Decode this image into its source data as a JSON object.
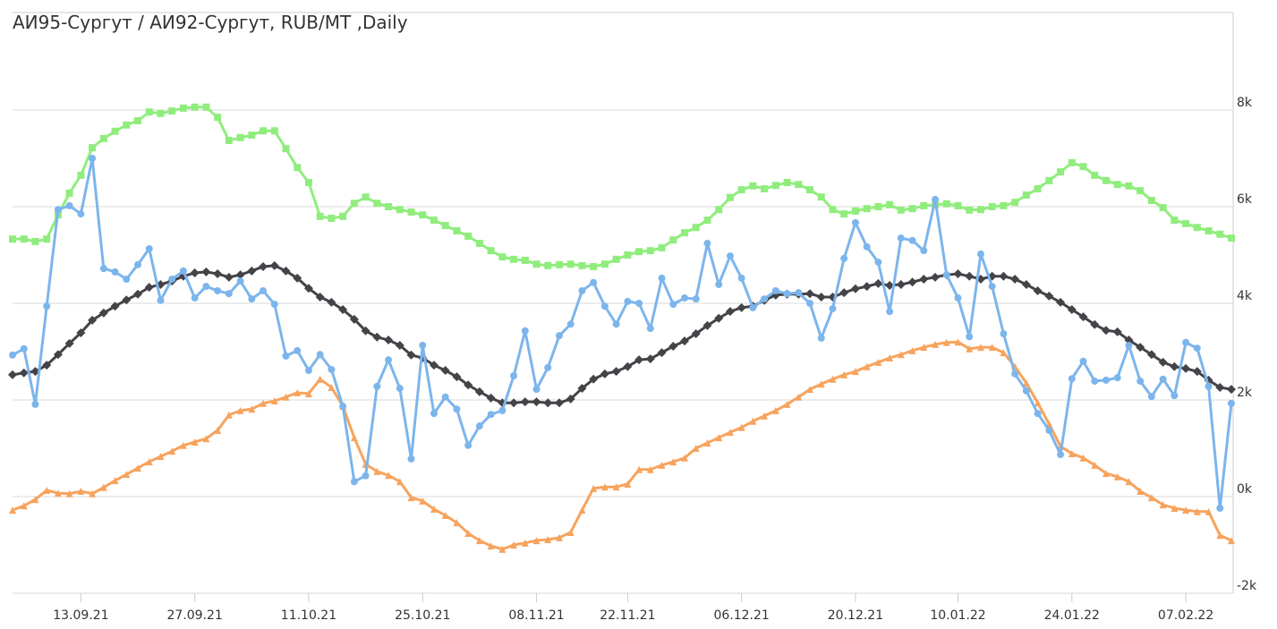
{
  "chart_data": {
    "type": "line",
    "title": "АИ95-Сургут / АИ92-Сургут, RUB/MT ,Daily",
    "categories": [
      null,
      null,
      null,
      null,
      null,
      null,
      "13.09.21",
      null,
      null,
      null,
      null,
      null,
      null,
      null,
      null,
      null,
      "27.09.21",
      null,
      null,
      null,
      null,
      null,
      null,
      null,
      null,
      null,
      "11.10.21",
      null,
      null,
      null,
      null,
      null,
      null,
      null,
      null,
      null,
      "25.10.21",
      null,
      null,
      null,
      null,
      null,
      null,
      null,
      null,
      null,
      "08.11.21",
      null,
      null,
      null,
      null,
      null,
      null,
      null,
      "22.11.21",
      null,
      null,
      null,
      null,
      null,
      null,
      null,
      null,
      null,
      "06.12.21",
      null,
      null,
      null,
      null,
      null,
      null,
      null,
      null,
      null,
      "20.12.21",
      null,
      null,
      null,
      null,
      null,
      null,
      null,
      null,
      "10.01.22",
      null,
      null,
      null,
      null,
      null,
      null,
      null,
      null,
      null,
      "24.01.22",
      null,
      null,
      null,
      null,
      null,
      null,
      null,
      null,
      null,
      "07.02.22",
      null,
      null,
      null,
      null
    ],
    "series": [
      {
        "color": "#90ed7d",
        "marker": "square",
        "values": [
          5330,
          5330,
          5280,
          5330,
          5830,
          6280,
          6650,
          7220,
          7410,
          7560,
          7690,
          7780,
          7960,
          7930,
          7980,
          8040,
          8060,
          8060,
          7850,
          7370,
          7430,
          7480,
          7570,
          7570,
          7200,
          6810,
          6500,
          5800,
          5760,
          5800,
          6070,
          6200,
          6070,
          6000,
          5940,
          5890,
          5830,
          5720,
          5610,
          5500,
          5390,
          5240,
          5090,
          4960,
          4910,
          4890,
          4810,
          4780,
          4800,
          4810,
          4780,
          4760,
          4810,
          4910,
          5000,
          5070,
          5090,
          5150,
          5310,
          5460,
          5570,
          5720,
          5940,
          6190,
          6350,
          6430,
          6370,
          6440,
          6500,
          6460,
          6350,
          6200,
          5940,
          5850,
          5910,
          5960,
          6000,
          6040,
          5930,
          5960,
          6020,
          6040,
          6060,
          6020,
          5930,
          5940,
          6000,
          6020,
          6090,
          6240,
          6370,
          6540,
          6720,
          6910,
          6830,
          6650,
          6540,
          6460,
          6430,
          6330,
          6130,
          5980,
          5720,
          5650,
          5570,
          5500,
          5430,
          5350
        ]
      },
      {
        "color": "#434348",
        "marker": "diamond",
        "values": [
          2520,
          2560,
          2590,
          2720,
          2940,
          3170,
          3390,
          3650,
          3800,
          3940,
          4070,
          4190,
          4330,
          4390,
          4460,
          4560,
          4630,
          4650,
          4610,
          4540,
          4590,
          4670,
          4760,
          4780,
          4670,
          4520,
          4310,
          4130,
          4020,
          3870,
          3670,
          3430,
          3300,
          3240,
          3130,
          2930,
          2870,
          2720,
          2610,
          2480,
          2310,
          2170,
          2040,
          1940,
          1940,
          1960,
          1960,
          1940,
          1940,
          2020,
          2240,
          2430,
          2540,
          2590,
          2690,
          2830,
          2850,
          2980,
          3110,
          3220,
          3370,
          3540,
          3690,
          3830,
          3910,
          3940,
          4060,
          4170,
          4190,
          4190,
          4200,
          4130,
          4130,
          4220,
          4300,
          4350,
          4410,
          4370,
          4390,
          4440,
          4500,
          4540,
          4590,
          4610,
          4560,
          4500,
          4560,
          4560,
          4500,
          4390,
          4260,
          4150,
          4020,
          3870,
          3720,
          3560,
          3440,
          3410,
          3240,
          3090,
          2940,
          2780,
          2690,
          2650,
          2590,
          2410,
          2260,
          2220
        ]
      },
      {
        "color": "#f7a35c",
        "marker": "triangle",
        "values": [
          -280,
          -190,
          -60,
          130,
          70,
          60,
          110,
          60,
          190,
          330,
          460,
          590,
          720,
          830,
          940,
          1060,
          1130,
          1200,
          1370,
          1690,
          1780,
          1810,
          1930,
          1980,
          2060,
          2150,
          2130,
          2430,
          2260,
          1870,
          1220,
          670,
          520,
          440,
          310,
          -20,
          -90,
          -260,
          -390,
          -540,
          -760,
          -910,
          -1020,
          -1090,
          -1000,
          -960,
          -910,
          -890,
          -850,
          -740,
          -280,
          170,
          200,
          200,
          260,
          560,
          560,
          650,
          720,
          800,
          1000,
          1110,
          1220,
          1330,
          1430,
          1560,
          1670,
          1780,
          1910,
          2060,
          2220,
          2330,
          2430,
          2520,
          2590,
          2690,
          2780,
          2870,
          2940,
          3020,
          3090,
          3150,
          3190,
          3200,
          3060,
          3090,
          3090,
          2980,
          2690,
          2350,
          1940,
          1500,
          1040,
          890,
          800,
          650,
          480,
          410,
          310,
          110,
          -20,
          -170,
          -240,
          -280,
          -310,
          -310,
          -800,
          -910
        ]
      },
      {
        "color": "#7cb5ec",
        "marker": "circle",
        "values": [
          2930,
          3060,
          1910,
          3940,
          5940,
          6020,
          5850,
          7000,
          4720,
          4650,
          4500,
          4800,
          5130,
          4060,
          4500,
          4670,
          4110,
          4350,
          4260,
          4200,
          4460,
          4090,
          4260,
          3980,
          2910,
          3020,
          2610,
          2940,
          2630,
          1870,
          310,
          430,
          2280,
          2830,
          2240,
          780,
          3130,
          1720,
          2060,
          1810,
          1060,
          1460,
          1700,
          1780,
          2500,
          3430,
          2220,
          2670,
          3330,
          3570,
          4260,
          4430,
          3940,
          3570,
          4040,
          4000,
          3480,
          4520,
          3980,
          4110,
          4090,
          5240,
          4390,
          4980,
          4520,
          3910,
          4090,
          4260,
          4200,
          4220,
          4000,
          3280,
          3890,
          4930,
          5670,
          5170,
          4850,
          3830,
          5350,
          5300,
          5090,
          6150,
          4590,
          4110,
          3310,
          5020,
          4350,
          3370,
          2540,
          2190,
          1720,
          1370,
          870,
          2440,
          2800,
          2390,
          2410,
          2460,
          3130,
          2390,
          2070,
          2430,
          2090,
          3190,
          3070,
          2280,
          -240,
          1930
        ]
      }
    ],
    "ylim": [
      -2000,
      10000
    ],
    "yticks": [
      {
        "value": -2000,
        "label": "-2k"
      },
      {
        "value": 0,
        "label": "0k"
      },
      {
        "value": 2000,
        "label": "2k"
      },
      {
        "value": 4000,
        "label": "4k"
      },
      {
        "value": 6000,
        "label": "6k"
      },
      {
        "value": 8000,
        "label": "8k"
      }
    ],
    "grid": true
  }
}
